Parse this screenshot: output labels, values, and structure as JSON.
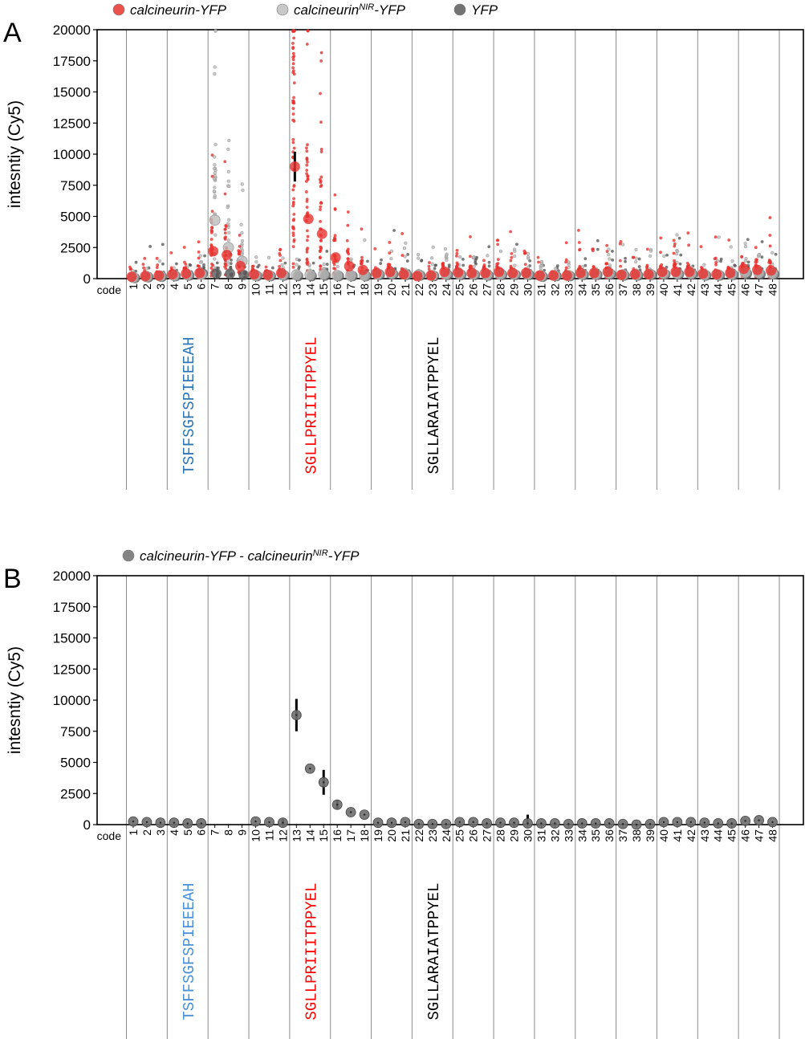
{
  "figure": {
    "panel_a_letter": "A",
    "panel_b_letter": "B",
    "colors": {
      "calcineurin_yfp": "#e8322e",
      "calcineurin_nir_yfp": "#bdbdbd",
      "yfp": "#5a5a5a",
      "difference": "#6e6e6e",
      "seq_blue": "#2e75b6",
      "seq_blue_b": "#4a90d9",
      "seq_red": "#ff0000",
      "seq_black": "#000000"
    }
  },
  "chart_data": [
    {
      "panel": "A",
      "type": "scatter",
      "xlabel": "code",
      "ylabel": "intesntiy (Cy5)",
      "ylim": [
        0,
        20000
      ],
      "yticks": [
        "0",
        "2500",
        "5000",
        "7500",
        "10000",
        "12500",
        "15000",
        "17500",
        "20000"
      ],
      "categories": [
        "1",
        "2",
        "3",
        "4",
        "5",
        "6",
        "7",
        "8",
        "9",
        "10",
        "11",
        "12",
        "13",
        "14",
        "15",
        "16",
        "17",
        "18",
        "19",
        "20",
        "21",
        "22",
        "23",
        "24",
        "25",
        "26",
        "27",
        "28",
        "29",
        "30",
        "31",
        "32",
        "33",
        "34",
        "35",
        "36",
        "37",
        "38",
        "39",
        "40",
        "41",
        "42",
        "43",
        "44",
        "45",
        "46",
        "47",
        "48"
      ],
      "legend": {
        "position": "top",
        "entries": [
          {
            "base": "calcineurin-YFP",
            "sup": "",
            "tail": "",
            "color": "#e8322e"
          },
          {
            "base": "calcineurin",
            "sup": "NIR",
            "tail": "-YFP",
            "color": "#bdbdbd"
          },
          {
            "base": "YFP",
            "sup": "",
            "tail": "",
            "color": "#5a5a5a"
          }
        ]
      },
      "series": [
        {
          "name": "calcineurin-YFP",
          "color": "#e8322e",
          "means": [
            150,
            200,
            250,
            350,
            400,
            450,
            2200,
            1900,
            1000,
            350,
            300,
            450,
            9000,
            4800,
            3600,
            1700,
            1000,
            700,
            450,
            550,
            350,
            200,
            250,
            550,
            500,
            450,
            450,
            550,
            450,
            450,
            250,
            250,
            250,
            450,
            450,
            550,
            300,
            350,
            350,
            550,
            550,
            550,
            400,
            350,
            450,
            800,
            700,
            650
          ],
          "errors": [
            0,
            0,
            0,
            0,
            0,
            0,
            0,
            0,
            0,
            0,
            0,
            0,
            1200,
            0,
            0,
            0,
            0,
            0,
            0,
            0,
            0,
            0,
            0,
            0,
            0,
            0,
            0,
            0,
            0,
            0,
            0,
            0,
            0,
            0,
            0,
            0,
            0,
            0,
            0,
            0,
            0,
            0,
            0,
            0,
            0,
            0,
            0,
            0
          ]
        },
        {
          "name": "calcineurinNIR-YFP",
          "color": "#bdbdbd",
          "means": [
            100,
            150,
            200,
            250,
            300,
            350,
            4700,
            2500,
            1400,
            250,
            250,
            300,
            300,
            300,
            350,
            250,
            250,
            250,
            350,
            400,
            350,
            300,
            250,
            350,
            350,
            350,
            300,
            350,
            350,
            350,
            200,
            250,
            250,
            350,
            350,
            400,
            300,
            300,
            350,
            400,
            400,
            400,
            300,
            300,
            350,
            500,
            450,
            400
          ],
          "errors": [
            0,
            0,
            0,
            0,
            0,
            0,
            0,
            0,
            0,
            0,
            0,
            0,
            0,
            0,
            0,
            0,
            0,
            0,
            0,
            0,
            0,
            0,
            0,
            0,
            0,
            0,
            0,
            0,
            0,
            0,
            0,
            0,
            0,
            0,
            0,
            0,
            0,
            0,
            0,
            0,
            0,
            0,
            0,
            0,
            0,
            0,
            0,
            0
          ]
        },
        {
          "name": "YFP",
          "color": "#5a5a5a",
          "means": [
            50,
            100,
            150,
            200,
            250,
            400,
            400,
            400,
            300,
            200,
            200,
            250,
            200,
            200,
            250,
            200,
            200,
            200,
            300,
            350,
            300,
            250,
            200,
            300,
            300,
            300,
            250,
            300,
            300,
            300,
            150,
            200,
            200,
            300,
            300,
            350,
            250,
            250,
            300,
            350,
            350,
            350,
            250,
            250,
            300,
            400,
            350,
            350
          ],
          "errors": [
            0,
            0,
            0,
            0,
            0,
            0,
            0,
            0,
            0,
            0,
            0,
            0,
            0,
            0,
            0,
            0,
            0,
            0,
            0,
            0,
            0,
            0,
            0,
            0,
            0,
            0,
            0,
            0,
            0,
            0,
            0,
            0,
            0,
            0,
            0,
            0,
            0,
            0,
            0,
            0,
            0,
            0,
            0,
            0,
            0,
            0,
            0,
            0
          ]
        }
      ],
      "sequences": [
        {
          "text": "TSFFSGFSPIEEEAH",
          "color": "#2e75b6",
          "at_code": 5
        },
        {
          "text": "SGLLPRIIITPPYEL",
          "color": "#ff0000",
          "at_code": 14
        },
        {
          "text": "SGLLARAIATPPYEL",
          "color": "#000000",
          "at_code": 23
        }
      ]
    },
    {
      "panel": "B",
      "type": "scatter",
      "xlabel": "code",
      "ylabel": "intesntiy (Cy5)",
      "ylim": [
        0,
        20000
      ],
      "yticks": [
        "0",
        "2500",
        "5000",
        "7500",
        "10000",
        "12500",
        "15000",
        "17500",
        "20000"
      ],
      "categories": [
        "1",
        "2",
        "3",
        "4",
        "5",
        "6",
        "7",
        "8",
        "9",
        "10",
        "11",
        "12",
        "13",
        "14",
        "15",
        "16",
        "17",
        "18",
        "19",
        "20",
        "21",
        "22",
        "23",
        "24",
        "25",
        "26",
        "27",
        "28",
        "29",
        "30",
        "31",
        "32",
        "33",
        "34",
        "35",
        "36",
        "37",
        "38",
        "39",
        "40",
        "41",
        "42",
        "43",
        "44",
        "45",
        "46",
        "47",
        "48"
      ],
      "legend": {
        "position": "top",
        "entries": [
          {
            "base": "calcineurin-YFP - calcineurin",
            "sup": "NIR",
            "tail": "-YFP",
            "color": "#6e6e6e"
          }
        ]
      },
      "series": [
        {
          "name": "calcineurin-YFP - calcineurinNIR-YFP",
          "color": "#6e6e6e",
          "values": [
            250,
            200,
            150,
            150,
            100,
            100,
            null,
            null,
            null,
            250,
            200,
            150,
            8800,
            4500,
            3400,
            1600,
            1000,
            800,
            150,
            150,
            200,
            50,
            50,
            50,
            200,
            200,
            100,
            150,
            150,
            100,
            100,
            100,
            50,
            100,
            100,
            100,
            50,
            0,
            50,
            200,
            200,
            200,
            150,
            100,
            100,
            300,
            350,
            200
          ],
          "errors": [
            0,
            0,
            0,
            0,
            0,
            0,
            0,
            0,
            0,
            0,
            0,
            300,
            1300,
            0,
            1000,
            400,
            0,
            0,
            0,
            0,
            0,
            0,
            0,
            0,
            0,
            0,
            0,
            0,
            0,
            700,
            0,
            0,
            0,
            0,
            0,
            0,
            0,
            0,
            0,
            0,
            0,
            0,
            0,
            0,
            0,
            0,
            0,
            0
          ]
        }
      ],
      "sequences": [
        {
          "text": "TSFFSGFSPIEEEAH",
          "color": "#4a90d9",
          "at_code": 5
        },
        {
          "text": "SGLLPRIIITPPYEL",
          "color": "#ff0000",
          "at_code": 14
        },
        {
          "text": "SGLLARAIATPPYEL",
          "color": "#000000",
          "at_code": 23
        }
      ]
    }
  ]
}
